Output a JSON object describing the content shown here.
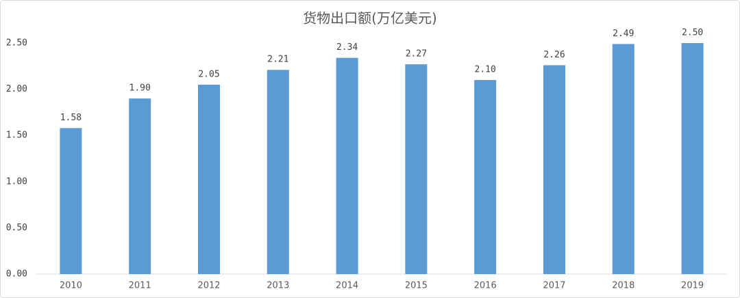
{
  "chart_data": {
    "type": "bar",
    "title": "货物出口额(万亿美元)",
    "categories": [
      "2010",
      "2011",
      "2012",
      "2013",
      "2014",
      "2015",
      "2016",
      "2017",
      "2018",
      "2019"
    ],
    "values": [
      1.58,
      1.9,
      2.05,
      2.21,
      2.34,
      2.27,
      2.1,
      2.26,
      2.49,
      2.5
    ],
    "value_labels": [
      "1.58",
      "1.90",
      "2.05",
      "2.21",
      "2.34",
      "2.27",
      "2.10",
      "2.26",
      "2.49",
      "2.50"
    ],
    "color": "#5b9bd5",
    "ylim": [
      0,
      2.5
    ],
    "yticks": [
      {
        "value": 0,
        "label": "0.00"
      },
      {
        "value": 0.5,
        "label": "0.50"
      },
      {
        "value": 1,
        "label": "1.00"
      },
      {
        "value": 1.5,
        "label": "1.50"
      },
      {
        "value": 2,
        "label": "2.00"
      },
      {
        "value": 2.5,
        "label": "2.50"
      }
    ],
    "grid": false
  }
}
